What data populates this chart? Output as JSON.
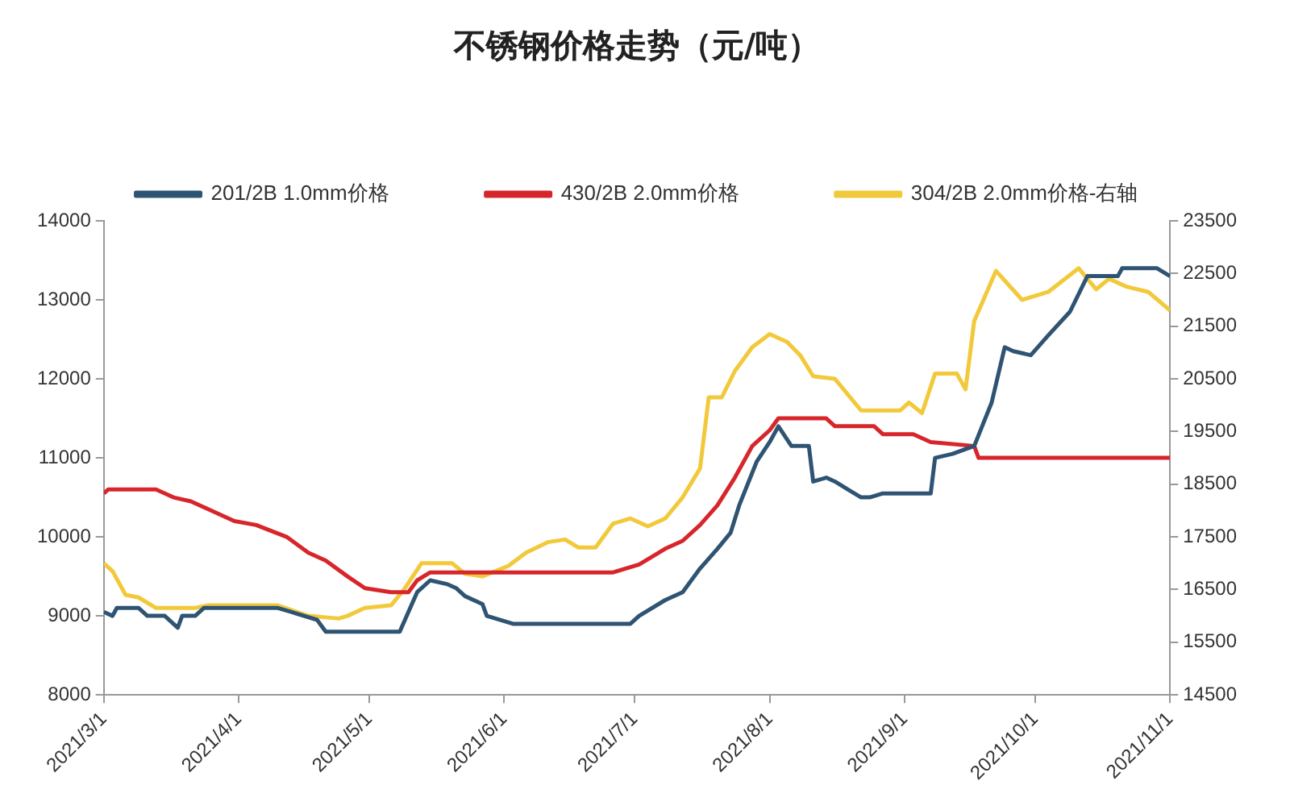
{
  "chart_data": {
    "type": "line",
    "title": "不锈钢价格走势（元/吨）",
    "legend": "top",
    "grid": false,
    "marker": "none",
    "line_style": "solid",
    "xlim": [
      "2021-03-01",
      "2021-11-01"
    ],
    "xticks": [
      {
        "value": "2021-03-01",
        "label": "2021/3/1"
      },
      {
        "value": "2021-04-01",
        "label": "2021/4/1"
      },
      {
        "value": "2021-05-01",
        "label": "2021/5/1"
      },
      {
        "value": "2021-06-01",
        "label": "2021/6/1"
      },
      {
        "value": "2021-07-01",
        "label": "2021/7/1"
      },
      {
        "value": "2021-08-01",
        "label": "2021/8/1"
      },
      {
        "value": "2021-09-01",
        "label": "2021/9/1"
      },
      {
        "value": "2021-10-01",
        "label": "2021/10/1"
      },
      {
        "value": "2021-11-01",
        "label": "2021/11/1"
      }
    ],
    "ylim": [
      8000,
      14000
    ],
    "yticks": [
      8000,
      9000,
      10000,
      11000,
      12000,
      13000,
      14000
    ],
    "y2lim": [
      14500,
      23500
    ],
    "y2ticks": [
      14500,
      15500,
      16500,
      17500,
      18500,
      19500,
      20500,
      21500,
      22500,
      23500
    ],
    "series": [
      {
        "name": "201/2B 1.0mm价格",
        "color": "#2f5473",
        "x": [
          "2021-03-01",
          "2021-03-03",
          "2021-03-04",
          "2021-03-09",
          "2021-03-11",
          "2021-03-15",
          "2021-03-18",
          "2021-03-19",
          "2021-03-22",
          "2021-03-24",
          "2021-04-10",
          "2021-04-13",
          "2021-04-19",
          "2021-04-21",
          "2021-05-08",
          "2021-05-12",
          "2021-05-15",
          "2021-05-19",
          "2021-05-21",
          "2021-05-23",
          "2021-05-27",
          "2021-05-28",
          "2021-06-03",
          "2021-06-30",
          "2021-07-02",
          "2021-07-08",
          "2021-07-12",
          "2021-07-16",
          "2021-07-20",
          "2021-07-23",
          "2021-07-25",
          "2021-07-29",
          "2021-08-01",
          "2021-08-03",
          "2021-08-06",
          "2021-08-10",
          "2021-08-11",
          "2021-08-14",
          "2021-08-16",
          "2021-08-19",
          "2021-08-22",
          "2021-08-24",
          "2021-08-27",
          "2021-09-07",
          "2021-09-08",
          "2021-09-12",
          "2021-09-17",
          "2021-09-21",
          "2021-09-24",
          "2021-09-26",
          "2021-09-30",
          "2021-10-04",
          "2021-10-09",
          "2021-10-13",
          "2021-10-20",
          "2021-10-21",
          "2021-10-29",
          "2021-11-01"
        ],
        "values": [
          9050,
          9000,
          9100,
          9100,
          9000,
          9000,
          8850,
          9000,
          9000,
          9100,
          9100,
          9050,
          8950,
          8800,
          8800,
          9300,
          9450,
          9400,
          9350,
          9250,
          9150,
          9000,
          8900,
          8900,
          9000,
          9200,
          9300,
          9600,
          9850,
          10050,
          10400,
          10950,
          11200,
          11400,
          11150,
          11150,
          10700,
          10750,
          10700,
          10600,
          10500,
          10500,
          10550,
          10550,
          11000,
          11050,
          11150,
          11700,
          12400,
          12350,
          12300,
          12550,
          12850,
          13300,
          13300,
          13400,
          13400,
          13300
        ]
      },
      {
        "name": "430/2B 2.0mm价格",
        "color": "#d7262b",
        "x": [
          "2021-03-01",
          "2021-03-02",
          "2021-03-13",
          "2021-03-17",
          "2021-03-21",
          "2021-03-25",
          "2021-03-31",
          "2021-04-05",
          "2021-04-12",
          "2021-04-17",
          "2021-04-21",
          "2021-04-26",
          "2021-04-30",
          "2021-05-06",
          "2021-05-10",
          "2021-05-12",
          "2021-05-15",
          "2021-06-26",
          "2021-07-02",
          "2021-07-08",
          "2021-07-12",
          "2021-07-16",
          "2021-07-20",
          "2021-07-24",
          "2021-07-28",
          "2021-08-01",
          "2021-08-03",
          "2021-08-14",
          "2021-08-16",
          "2021-08-25",
          "2021-08-27",
          "2021-09-03",
          "2021-09-07",
          "2021-09-17",
          "2021-09-18",
          "2021-11-01"
        ],
        "values": [
          10550,
          10600,
          10600,
          10500,
          10450,
          10350,
          10200,
          10150,
          10000,
          9800,
          9700,
          9500,
          9350,
          9300,
          9300,
          9450,
          9550,
          9550,
          9650,
          9850,
          9950,
          10150,
          10400,
          10750,
          11150,
          11350,
          11500,
          11500,
          11400,
          11400,
          11300,
          11300,
          11200,
          11150,
          11000,
          11000
        ]
      },
      {
        "name": "304/2B 2.0mm价格-右轴",
        "color": "#f2c93a",
        "axis": "y2",
        "x": [
          "2021-03-01",
          "2021-03-03",
          "2021-03-06",
          "2021-03-09",
          "2021-03-13",
          "2021-03-22",
          "2021-03-25",
          "2021-04-10",
          "2021-04-17",
          "2021-04-24",
          "2021-04-26",
          "2021-04-30",
          "2021-05-06",
          "2021-05-09",
          "2021-05-13",
          "2021-05-20",
          "2021-05-23",
          "2021-05-27",
          "2021-06-02",
          "2021-06-06",
          "2021-06-11",
          "2021-06-15",
          "2021-06-18",
          "2021-06-22",
          "2021-06-26",
          "2021-06-30",
          "2021-07-04",
          "2021-07-08",
          "2021-07-12",
          "2021-07-16",
          "2021-07-18",
          "2021-07-21",
          "2021-07-24",
          "2021-07-28",
          "2021-08-01",
          "2021-08-05",
          "2021-08-08",
          "2021-08-11",
          "2021-08-16",
          "2021-08-22",
          "2021-08-31",
          "2021-09-02",
          "2021-09-05",
          "2021-09-08",
          "2021-09-13",
          "2021-09-15",
          "2021-09-17",
          "2021-09-22",
          "2021-09-28",
          "2021-10-04",
          "2021-10-11",
          "2021-10-15",
          "2021-10-18",
          "2021-10-22",
          "2021-10-27",
          "2021-11-01"
        ],
        "values": [
          17000,
          16850,
          16400,
          16350,
          16150,
          16150,
          16200,
          16200,
          16000,
          15950,
          16000,
          16150,
          16200,
          16500,
          17000,
          17000,
          16800,
          16750,
          16950,
          17200,
          17400,
          17450,
          17300,
          17300,
          17750,
          17850,
          17700,
          17850,
          18250,
          18800,
          20150,
          20150,
          20650,
          21100,
          21350,
          21200,
          20950,
          20550,
          20500,
          19900,
          19900,
          20050,
          19850,
          20600,
          20600,
          20300,
          21600,
          22550,
          22000,
          22150,
          22600,
          22200,
          22400,
          22250,
          22150,
          21800
        ]
      }
    ]
  }
}
